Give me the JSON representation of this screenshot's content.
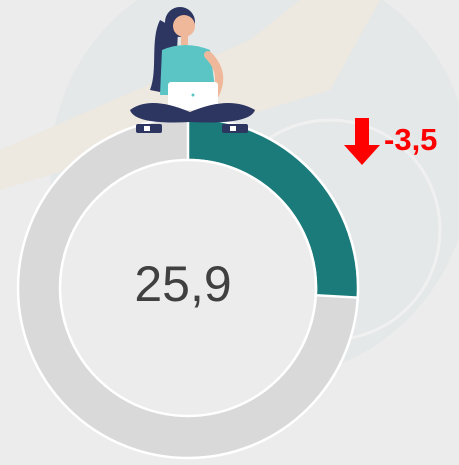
{
  "chart_data": {
    "type": "gauge",
    "values": [
      25.9
    ],
    "value_labels": [
      "25,9"
    ],
    "ylim": [
      0,
      100
    ],
    "color": "#1b7a7a",
    "track_color": "#d9d9d9",
    "change": -3.5,
    "change_label": "-3,5",
    "change_color": "#ff0000"
  }
}
